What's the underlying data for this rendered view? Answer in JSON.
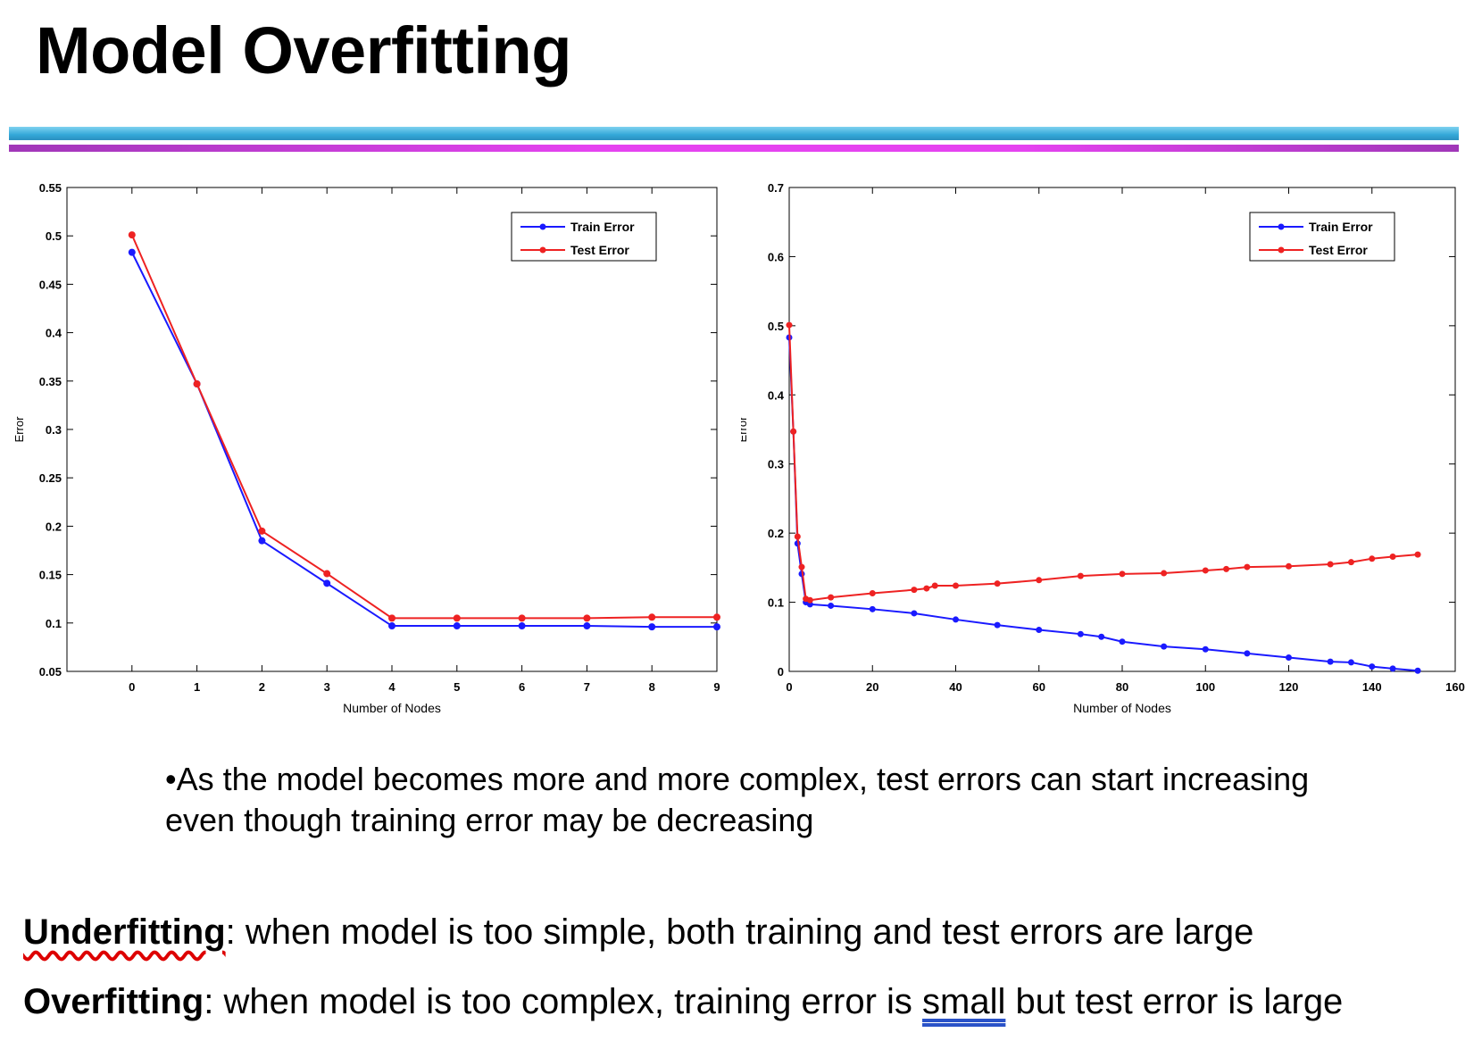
{
  "title": "Model Overfitting",
  "bullet": "•As the model becomes more and more complex, test errors can start increasing even though training error may be decreasing",
  "definitions": {
    "underfitting_term": "Underfitting",
    "underfitting_text": ": when model is too simple, both training and test errors are large",
    "overfitting_term": "Overfitting",
    "overfitting_text_a": ": when model is too complex, training error is ",
    "overfitting_small": "small",
    "overfitting_text_b": " but test error is large"
  },
  "colors": {
    "train": "#1a1aff",
    "test": "#ee2222"
  },
  "chart_data": [
    {
      "type": "line",
      "xlabel": "Number of Nodes",
      "ylabel": "Error",
      "xlim": [
        -1,
        9
      ],
      "ylim": [
        0.05,
        0.55
      ],
      "xticks": [
        0,
        1,
        2,
        3,
        4,
        5,
        6,
        7,
        8,
        9
      ],
      "yticks": [
        0.05,
        0.1,
        0.15,
        0.2,
        0.25,
        0.3,
        0.35,
        0.4,
        0.45,
        0.5,
        0.55
      ],
      "legend": "top-right",
      "grid": false,
      "series": [
        {
          "name": "Train Error",
          "x": [
            0,
            1,
            2,
            3,
            4,
            5,
            6,
            7,
            8,
            9
          ],
          "y": [
            0.483,
            0.347,
            0.185,
            0.141,
            0.097,
            0.097,
            0.097,
            0.097,
            0.096,
            0.096
          ]
        },
        {
          "name": "Test Error",
          "x": [
            0,
            1,
            2,
            3,
            4,
            5,
            6,
            7,
            8,
            9
          ],
          "y": [
            0.501,
            0.347,
            0.195,
            0.151,
            0.105,
            0.105,
            0.105,
            0.105,
            0.106,
            0.106
          ]
        }
      ]
    },
    {
      "type": "line",
      "xlabel": "Number of Nodes",
      "ylabel": "Error",
      "xlim": [
        0,
        160
      ],
      "ylim": [
        0,
        0.7
      ],
      "xticks": [
        0,
        20,
        40,
        60,
        80,
        100,
        120,
        140,
        160
      ],
      "yticks": [
        0,
        0.1,
        0.2,
        0.3,
        0.4,
        0.5,
        0.6,
        0.7
      ],
      "legend": "top-right",
      "grid": false,
      "series": [
        {
          "name": "Train Error",
          "x": [
            0,
            1,
            2,
            3,
            4,
            5,
            10,
            20,
            30,
            40,
            50,
            60,
            70,
            75,
            80,
            90,
            100,
            110,
            120,
            130,
            135,
            140,
            145,
            151
          ],
          "y": [
            0.483,
            0.347,
            0.185,
            0.141,
            0.1,
            0.097,
            0.095,
            0.09,
            0.084,
            0.075,
            0.067,
            0.06,
            0.054,
            0.05,
            0.043,
            0.036,
            0.032,
            0.026,
            0.02,
            0.014,
            0.013,
            0.007,
            0.004,
            0.001
          ]
        },
        {
          "name": "Test Error",
          "x": [
            0,
            1,
            2,
            3,
            4,
            5,
            10,
            20,
            30,
            33,
            35,
            40,
            50,
            60,
            70,
            80,
            90,
            100,
            105,
            110,
            120,
            130,
            135,
            140,
            145,
            151
          ],
          "y": [
            0.501,
            0.347,
            0.195,
            0.151,
            0.105,
            0.103,
            0.107,
            0.113,
            0.118,
            0.12,
            0.124,
            0.124,
            0.127,
            0.132,
            0.138,
            0.141,
            0.142,
            0.146,
            0.148,
            0.151,
            0.152,
            0.155,
            0.158,
            0.163,
            0.166,
            0.169
          ]
        }
      ]
    }
  ]
}
